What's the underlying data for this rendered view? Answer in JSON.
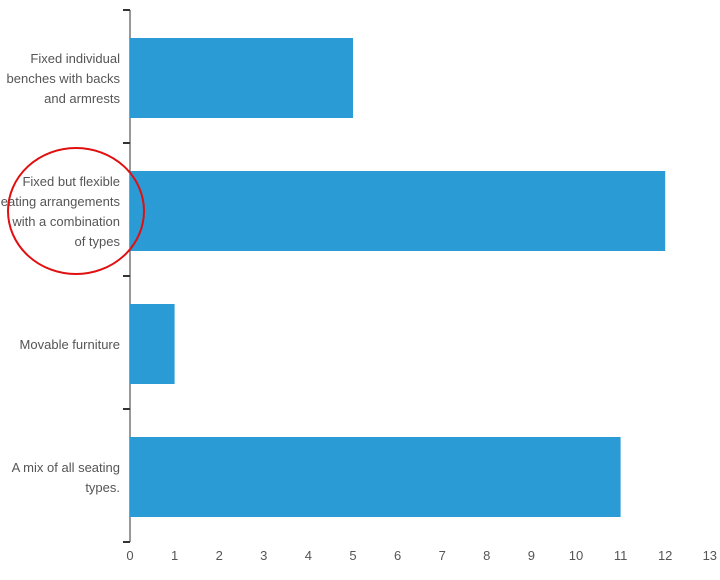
{
  "chart_data": {
    "type": "bar",
    "orientation": "horizontal",
    "categories": [
      "Fixed individual benches with backs and armrests",
      "Fixed but flexible eating arrangements with a combination of types",
      "Movable furniture",
      "A mix of all seating types."
    ],
    "category_label_lines": [
      [
        "Fixed individual",
        "benches with backs",
        "and armrests"
      ],
      [
        "Fixed but flexible",
        "eating arrangements",
        "with a combination",
        "of types"
      ],
      [
        "Movable furniture"
      ],
      [
        "A mix of all seating",
        "types."
      ]
    ],
    "values": [
      5,
      12,
      1,
      11
    ],
    "xlim": [
      0,
      13
    ],
    "xticks": [
      0,
      1,
      2,
      3,
      4,
      5,
      6,
      7,
      8,
      9,
      10,
      11,
      12,
      13
    ],
    "bar_color": "#2b9bd5",
    "axis_color": "#333333",
    "label_color": "#555555",
    "grid": false,
    "legend": "none",
    "annotation": {
      "type": "circle",
      "color": "#e01010",
      "highlighted_category_index": 1
    },
    "title": "",
    "xlabel": "",
    "ylabel": ""
  }
}
